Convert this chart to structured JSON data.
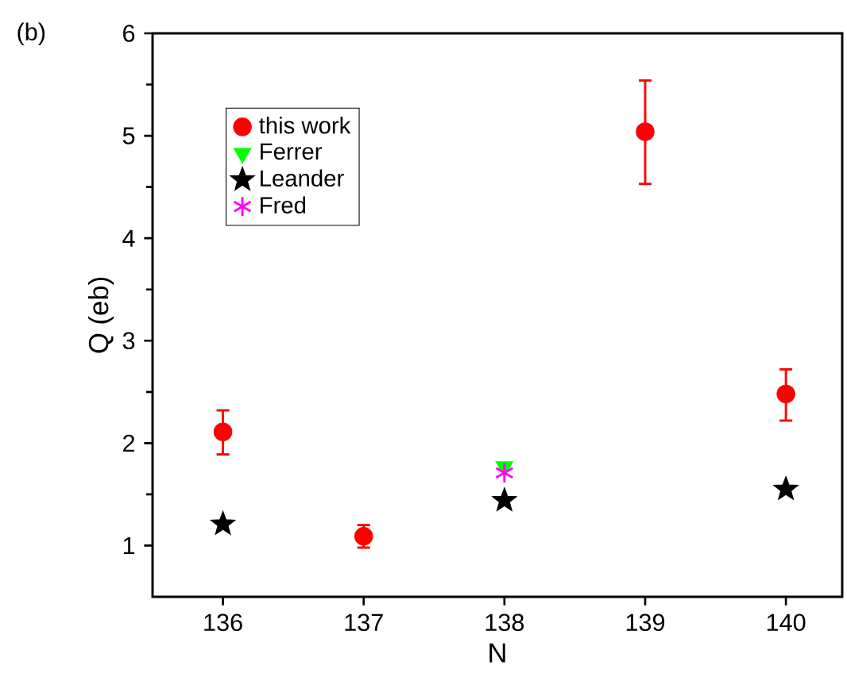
{
  "chart_data": {
    "type": "scatter",
    "xlabel": "N",
    "ylabel": "Q (eb)",
    "annotations": [
      "(b)"
    ],
    "x": [
      136,
      137,
      138,
      139,
      140
    ],
    "series": [
      {
        "name": "this work",
        "color": "#ff0000",
        "marker": "circle",
        "values": [
          2.11,
          1.09,
          null,
          5.04,
          2.48
        ],
        "errors": [
          [
            1.89,
            2.32
          ],
          [
            0.98,
            1.2
          ],
          null,
          [
            4.53,
            5.54
          ],
          [
            2.22,
            2.72
          ]
        ]
      },
      {
        "name": "Ferrer",
        "color": "#00ff00",
        "marker": "triangle",
        "values": [
          null,
          null,
          1.77,
          null,
          null
        ]
      },
      {
        "name": "Leander",
        "color": "#000000",
        "marker": "star",
        "values": [
          1.21,
          null,
          1.44,
          null,
          1.55
        ]
      },
      {
        "name": "Fred",
        "color": "#ff00ff",
        "marker": "cross",
        "values": [
          null,
          null,
          1.71,
          null,
          null
        ]
      }
    ],
    "xlim": [
      135.5,
      140.4
    ],
    "ylim": [
      0.5,
      6
    ],
    "xticks": [
      136,
      137,
      138,
      139,
      140
    ],
    "yticks": [
      1,
      2,
      3,
      4,
      5,
      6
    ],
    "legend": "top left",
    "grid": false
  }
}
